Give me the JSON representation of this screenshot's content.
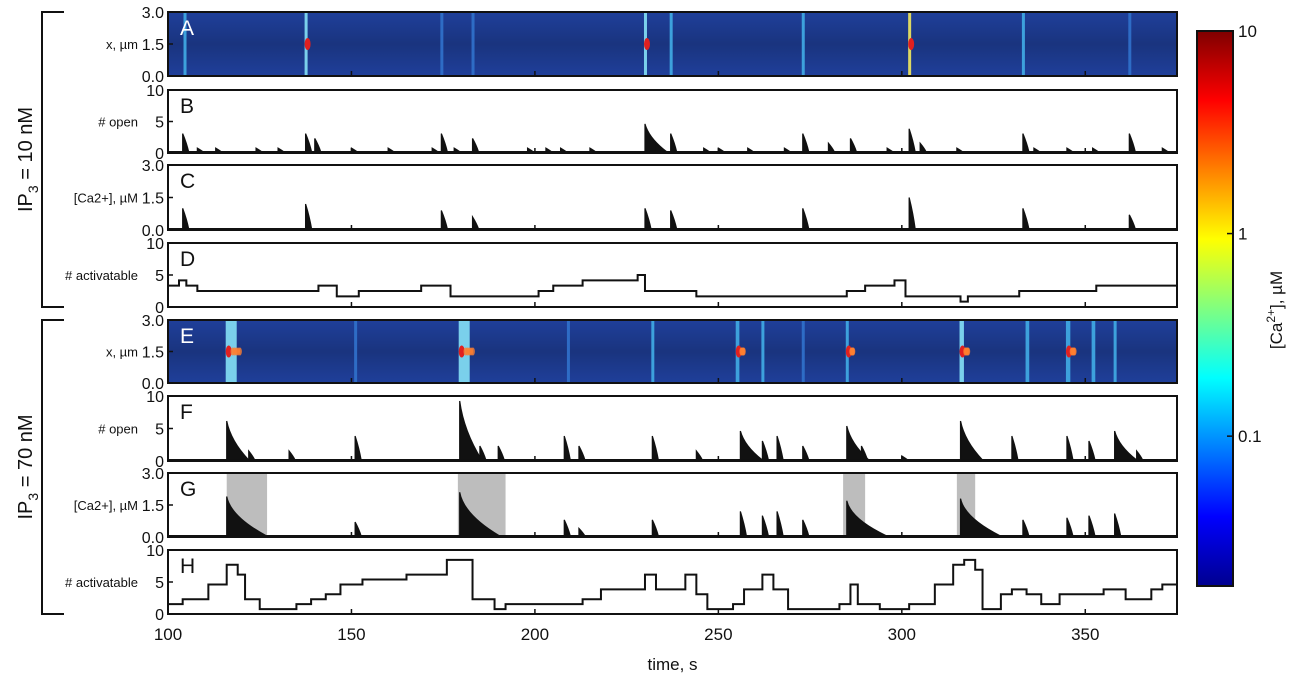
{
  "figure": {
    "xlabel": "time, s",
    "x_ticks": [
      "100",
      "150",
      "200",
      "250",
      "300",
      "350"
    ],
    "group_labels": [
      {
        "base": "IP",
        "sub": "3",
        "rest": " = 10 nM"
      },
      {
        "base": "IP",
        "sub": "3",
        "rest": " = 70 nM"
      }
    ],
    "colorbar": {
      "label_base": "[Ca",
      "label_sup": "2+",
      "label_rest": "], µM",
      "ticks": [
        "10",
        "1",
        "0.1"
      ],
      "colors": [
        "#7f0000",
        "#ff0000",
        "#ff8000",
        "#ffff00",
        "#80ff80",
        "#00ffff",
        "#0080ff",
        "#0000ff",
        "#00008f"
      ]
    }
  },
  "chart_data": [
    {
      "type": "heatmap",
      "panel": "A",
      "ylabel": "x, µm",
      "yticks": [
        "3.0",
        "1.5",
        "0.0"
      ],
      "xlim": [
        100,
        375
      ],
      "ylim": [
        0,
        3
      ],
      "scale": "log",
      "events": [
        [
          104.5,
          0.9,
          0.4
        ],
        [
          137.5,
          1.6,
          0.3
        ],
        [
          174.5,
          0.6,
          0.3
        ],
        [
          183,
          0.4,
          0.3
        ],
        [
          230,
          1.8,
          0.3
        ],
        [
          237,
          1.2,
          0.3
        ],
        [
          273,
          1.3,
          0.3
        ],
        [
          302,
          3.4,
          0.5
        ],
        [
          333,
          1.3,
          0.4
        ],
        [
          362,
          0.5,
          0.3
        ]
      ]
    },
    {
      "type": "line",
      "panel": "B",
      "ylabel": "# open",
      "yticks": [
        "10",
        "5",
        "0"
      ],
      "xlim": [
        100,
        375
      ],
      "ylim": [
        0,
        13
      ],
      "x": [
        104,
        108,
        113,
        124,
        130,
        137.5,
        140,
        150,
        160,
        172,
        174.5,
        178,
        183,
        198,
        203,
        207,
        215,
        230,
        233,
        237,
        246,
        250,
        258,
        268,
        273,
        280,
        286,
        296,
        302,
        305,
        315,
        333,
        336,
        345,
        352,
        362,
        371
      ],
      "y": [
        4,
        1,
        1,
        1,
        1,
        4,
        3,
        1,
        1,
        1,
        4,
        1,
        3,
        1,
        1,
        1,
        1,
        6,
        2,
        4,
        1,
        1,
        1,
        1,
        4,
        2,
        3,
        1,
        5,
        2,
        1,
        4,
        1,
        1,
        1,
        4,
        1
      ]
    },
    {
      "type": "line",
      "panel": "C",
      "ylabel": "[Ca2+], µM",
      "yticks": [
        "3.0",
        "1.5",
        "0.0"
      ],
      "xlim": [
        100,
        375
      ],
      "ylim": [
        0,
        3
      ],
      "x": [
        104,
        137.5,
        174.5,
        183,
        230,
        237,
        273,
        302,
        333,
        362
      ],
      "y": [
        1.0,
        1.2,
        0.9,
        0.6,
        1.0,
        0.9,
        1.0,
        1.5,
        1.0,
        0.7
      ]
    },
    {
      "type": "line",
      "panel": "D",
      "ylabel": "# activatable",
      "yticks": [
        "10",
        "5",
        "0"
      ],
      "xlim": [
        100,
        375
      ],
      "ylim": [
        0,
        12
      ],
      "x": [
        100,
        103,
        105,
        108,
        141,
        146,
        152,
        169,
        177,
        201,
        205,
        213,
        228,
        230,
        244,
        285,
        290,
        298,
        301,
        311,
        316,
        318,
        320,
        332,
        336,
        349,
        353,
        368,
        375
      ],
      "y": [
        4,
        5,
        4,
        3,
        4,
        2,
        3,
        4,
        2,
        3,
        4,
        5,
        6,
        3,
        2,
        3,
        4,
        5,
        2,
        2,
        1,
        2,
        2,
        3,
        3,
        3,
        4,
        4,
        4
      ]
    },
    {
      "type": "heatmap",
      "panel": "E",
      "ylabel": "x, µm",
      "yticks": [
        "3.0",
        "1.5",
        "0.0"
      ],
      "xlim": [
        100,
        375
      ],
      "ylim": [
        0,
        3
      ],
      "scale": "log",
      "events": [
        [
          116,
          1.5,
          3,
          12
        ],
        [
          151,
          0.6,
          0.4
        ],
        [
          179.5,
          1.6,
          3,
          12
        ],
        [
          209,
          0.7,
          0.3
        ],
        [
          232,
          1.3,
          0.6
        ],
        [
          255,
          1.1,
          1.0,
          6
        ],
        [
          262,
          0.9,
          0.8
        ],
        [
          273,
          0.6,
          0.4
        ],
        [
          285,
          1.2,
          0.8,
          6
        ],
        [
          316,
          1.6,
          1.2,
          6
        ],
        [
          334,
          1.0,
          1.0
        ],
        [
          345,
          1.2,
          1.2,
          6
        ],
        [
          352,
          1.2,
          1.0
        ],
        [
          358,
          1.0,
          0.8
        ]
      ]
    },
    {
      "type": "line",
      "panel": "F",
      "ylabel": "# open",
      "yticks": [
        "10",
        "5",
        "0"
      ],
      "xlim": [
        100,
        375
      ],
      "ylim": [
        0,
        13
      ],
      "x": [
        116,
        122,
        133,
        151,
        179.5,
        185,
        190,
        208,
        212,
        232,
        244,
        256,
        262,
        266,
        273,
        285,
        289,
        300,
        316,
        330,
        345,
        351,
        358,
        364
      ],
      "y": [
        8,
        2,
        2,
        5,
        12,
        3,
        3,
        5,
        3,
        5,
        2,
        6,
        4,
        5,
        3,
        7,
        3,
        1,
        8,
        5,
        5,
        4,
        6,
        2
      ]
    },
    {
      "type": "area",
      "panel": "G",
      "ylabel": "[Ca2+], µM",
      "yticks": [
        "3.0",
        "1.5",
        "0.0"
      ],
      "xlim": [
        100,
        375
      ],
      "ylim": [
        0,
        3
      ],
      "shaded": [
        [
          116,
          127
        ],
        [
          179,
          192
        ],
        [
          284,
          290
        ],
        [
          315,
          320
        ]
      ],
      "x": [
        116,
        151,
        179.5,
        208,
        212,
        232,
        256,
        262,
        266,
        273,
        285,
        316,
        333,
        345,
        351,
        358
      ],
      "y": [
        1.9,
        0.7,
        2.1,
        0.8,
        0.4,
        0.8,
        1.2,
        1.0,
        1.2,
        0.8,
        1.7,
        1.8,
        0.8,
        0.9,
        1.0,
        1.1
      ]
    },
    {
      "type": "line",
      "panel": "H",
      "ylabel": "# activatable",
      "yticks": [
        "10",
        "5",
        "0"
      ],
      "xlim": [
        100,
        375
      ],
      "ylim": [
        0,
        13
      ],
      "x": [
        100,
        104,
        111,
        116,
        119,
        121,
        125,
        129,
        135,
        139,
        143,
        147,
        153,
        160,
        165,
        172,
        176,
        180,
        183,
        189,
        192,
        207,
        213,
        218,
        230,
        233,
        241,
        244,
        247,
        254,
        257,
        262,
        265,
        269,
        277,
        283,
        286,
        288,
        294,
        302,
        309,
        314,
        317,
        320,
        322,
        327,
        330,
        334,
        338,
        343,
        350,
        355,
        361,
        368,
        371,
        375
      ],
      "y": [
        2,
        3,
        6,
        10,
        8,
        3,
        1,
        1,
        2,
        3,
        4,
        6,
        7,
        7,
        8,
        8,
        11,
        11,
        3,
        1,
        2,
        2,
        3,
        5,
        8,
        5,
        8,
        4,
        1,
        2,
        5,
        8,
        5,
        1,
        1,
        2,
        6,
        2,
        1,
        2,
        6,
        10,
        11,
        9,
        1,
        4,
        5,
        4,
        2,
        4,
        4,
        5,
        3,
        5,
        6,
        6
      ]
    }
  ]
}
